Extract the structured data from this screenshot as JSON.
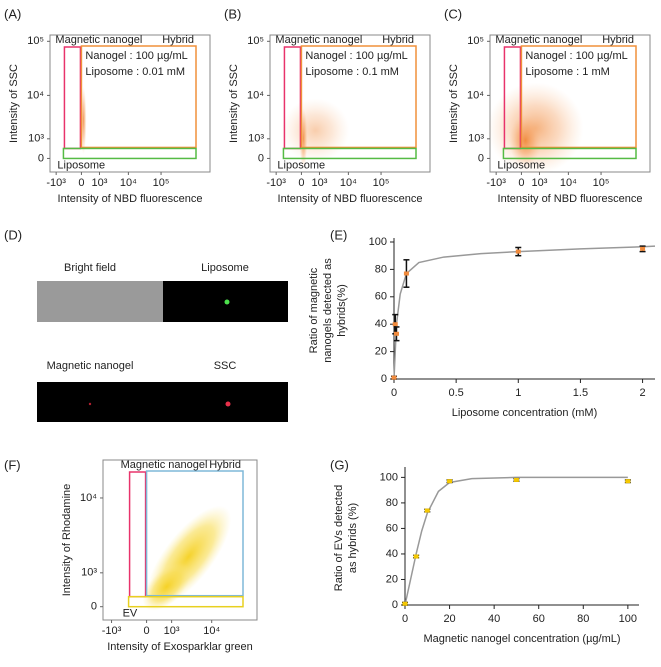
{
  "chart_data": [
    {
      "type": "flow",
      "panel_label": "(A)",
      "xlabel": "Intensity of NBD fluorescence",
      "ylabel": "Intensity of SSC",
      "xscale": "symlog",
      "yscale": "symlog",
      "xlim": [
        -1500,
        3000000
      ],
      "ylim": [
        -600,
        130000
      ],
      "xticks": [
        {
          "value": -1000,
          "label": "-10³"
        },
        0,
        {
          "value": 1000,
          "label": "10³"
        },
        {
          "value": 10000,
          "label": "10⁴"
        },
        {
          "value": 100000,
          "label": "10⁵"
        }
      ],
      "yticks": [
        0,
        {
          "value": 1000,
          "label": "10³"
        },
        {
          "value": 10000,
          "label": "10⁴"
        },
        {
          "value": 100000,
          "label": "10⁵"
        }
      ],
      "gates": [
        {
          "name": "Magnetic nanogel",
          "color": "#e8336b"
        },
        {
          "name": "Hybrid",
          "color": "#f0903a"
        },
        {
          "name": "Liposome",
          "color": "#55bb44"
        }
      ],
      "annotations": [
        "Nanogel : 100 µg/mL",
        "Liposome : 0.01 mM"
      ],
      "point_color": "#f08a3c"
    },
    {
      "type": "flow",
      "panel_label": "(B)",
      "xlabel": "Intensity of NBD fluorescence",
      "ylabel": "Intensity of SSC",
      "xscale": "symlog",
      "yscale": "symlog",
      "xlim": [
        -1500,
        3000000
      ],
      "ylim": [
        -600,
        130000
      ],
      "xticks": [
        {
          "value": -1000,
          "label": "-10³"
        },
        0,
        {
          "value": 1000,
          "label": "10³"
        },
        {
          "value": 10000,
          "label": "10⁴"
        },
        {
          "value": 100000,
          "label": "10⁵"
        }
      ],
      "yticks": [
        0,
        {
          "value": 1000,
          "label": "10³"
        },
        {
          "value": 10000,
          "label": "10⁴"
        },
        {
          "value": 100000,
          "label": "10⁵"
        }
      ],
      "gates": [
        {
          "name": "Magnetic nanogel",
          "color": "#e8336b"
        },
        {
          "name": "Hybrid",
          "color": "#f0903a"
        },
        {
          "name": "Liposome",
          "color": "#55bb44"
        }
      ],
      "annotations": [
        "Nanogel : 100 µg/mL",
        "Liposome : 0.1 mM"
      ],
      "point_color": "#f08a3c"
    },
    {
      "type": "flow",
      "panel_label": "(C)",
      "xlabel": "Intensity of NBD fluorescence",
      "ylabel": "Intensity of SSC",
      "xscale": "symlog",
      "yscale": "symlog",
      "xlim": [
        -1500,
        3000000
      ],
      "ylim": [
        -600,
        130000
      ],
      "xticks": [
        {
          "value": -1000,
          "label": "-10³"
        },
        0,
        {
          "value": 1000,
          "label": "10³"
        },
        {
          "value": 10000,
          "label": "10⁴"
        },
        {
          "value": 100000,
          "label": "10⁵"
        }
      ],
      "yticks": [
        0,
        {
          "value": 1000,
          "label": "10³"
        },
        {
          "value": 10000,
          "label": "10⁴"
        },
        {
          "value": 100000,
          "label": "10⁵"
        }
      ],
      "gates": [
        {
          "name": "Magnetic nanogel",
          "color": "#e8336b"
        },
        {
          "name": "Hybrid",
          "color": "#f0903a"
        },
        {
          "name": "Liposome",
          "color": "#55bb44"
        }
      ],
      "annotations": [
        "Nanogel : 100 µg/mL",
        "Liposome : 1 mM"
      ],
      "point_color": "#f08a3c"
    },
    {
      "type": "scatter",
      "panel_label": "(E)",
      "xlabel": "Liposome concentration (mM)",
      "ylabel": [
        "Ratio of magnetic",
        "nanogels detected as",
        "hybrids(%)"
      ],
      "xlim": [
        0,
        2.1
      ],
      "ylim": [
        0,
        100
      ],
      "xticks": [
        0,
        0.5,
        1,
        1.5,
        2
      ],
      "yticks": [
        0,
        20,
        40,
        60,
        80,
        100
      ],
      "series": [
        {
          "x": [
            0,
            0.01,
            0.02,
            0.1,
            1,
            2
          ],
          "values": [
            1,
            40,
            33,
            77,
            93,
            95
          ],
          "errors": [
            1,
            7,
            5,
            10,
            3,
            2
          ],
          "color": "#f08a3c"
        }
      ],
      "fit": {
        "x": [
          0,
          0.02,
          0.05,
          0.1,
          0.2,
          0.4,
          0.7,
          1,
          1.5,
          2,
          2.1
        ],
        "values": [
          0,
          40,
          62,
          77,
          85,
          89,
          91.5,
          93,
          95,
          96.5,
          97
        ],
        "color": "#999999"
      }
    },
    {
      "type": "flow",
      "panel_label": "(F)",
      "xlabel": "Intensity of Exosparklar green",
      "ylabel": "Intensity of Rhodamine",
      "xscale": "symlog",
      "yscale": "symlog",
      "xlim": [
        -1500,
        100000
      ],
      "ylim": [
        -300,
        26000
      ],
      "xticks": [
        {
          "value": -1000,
          "label": "-10³"
        },
        0,
        {
          "value": 1000,
          "label": "10³"
        },
        {
          "value": 10000,
          "label": "10⁴"
        }
      ],
      "yticks": [
        0,
        {
          "value": 1000,
          "label": "10³"
        },
        {
          "value": 10000,
          "label": "10⁴"
        }
      ],
      "gates": [
        {
          "name": "Magnetic nanogel",
          "color": "#e8336b"
        },
        {
          "name": "Hybrid",
          "color": "#7fb8d8"
        },
        {
          "name": "EV",
          "color": "#e8d020"
        }
      ],
      "annotations": [],
      "point_color": "#f5d020"
    },
    {
      "type": "scatter",
      "panel_label": "(G)",
      "xlabel": "Magnetic nanogel concentration (µg/mL)",
      "ylabel": [
        "Ratio of EVs detected",
        "as hybrids (%)"
      ],
      "xlim": [
        0,
        105
      ],
      "ylim": [
        0,
        105
      ],
      "xticks": [
        0,
        20,
        40,
        60,
        80,
        100
      ],
      "yticks": [
        0,
        20,
        40,
        60,
        80,
        100
      ],
      "series": [
        {
          "x": [
            0,
            5,
            10,
            20,
            50,
            100
          ],
          "values": [
            1,
            38,
            74,
            97,
            98,
            97
          ],
          "errors": [
            1,
            1,
            1,
            1,
            1,
            1
          ],
          "color": "#f5c800"
        }
      ],
      "fit": {
        "x": [
          0,
          2.5,
          5,
          7.5,
          10,
          15,
          20,
          30,
          50,
          100
        ],
        "values": [
          0,
          20,
          40,
          58,
          72,
          89,
          96,
          99,
          100,
          100
        ],
        "color": "#999999"
      }
    }
  ],
  "image_panel": {
    "label": "(D)",
    "captions": [
      "Bright field",
      "Liposome",
      "Magnetic nanogel",
      "SSC"
    ]
  }
}
